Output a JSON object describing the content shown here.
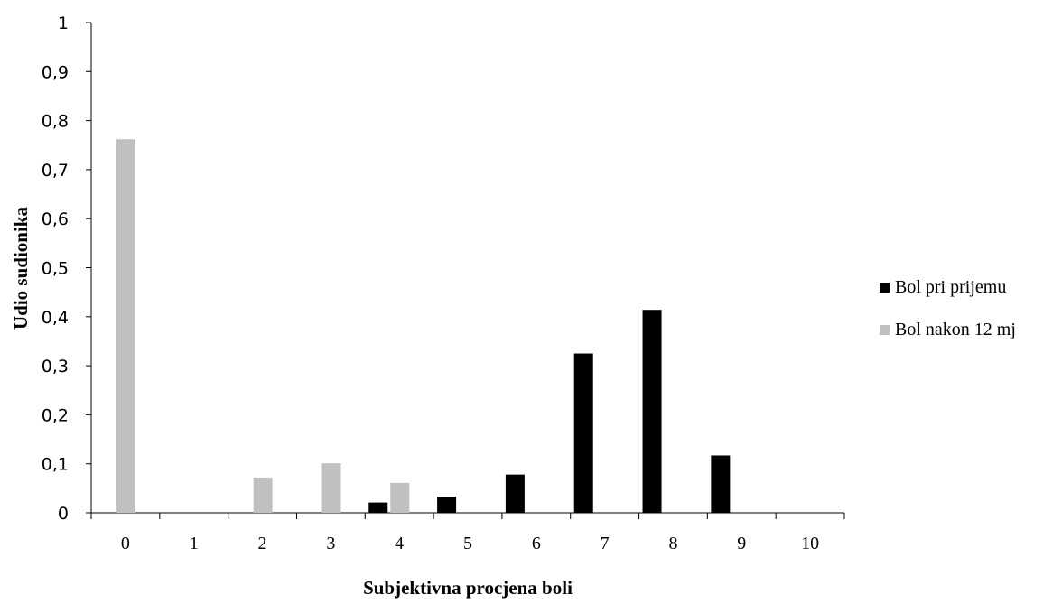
{
  "chart_data": {
    "type": "bar",
    "title": "",
    "xlabel": "Subjektivna procjena boli",
    "ylabel": "Udio sudionika",
    "categories": [
      "0",
      "1",
      "2",
      "3",
      "4",
      "5",
      "6",
      "7",
      "8",
      "9",
      "10"
    ],
    "y_ticks": [
      "0",
      "0,1",
      "0,2",
      "0,3",
      "0,4",
      "0,5",
      "0,6",
      "0,7",
      "0,8",
      "0,9",
      "1"
    ],
    "ylim": [
      0,
      1
    ],
    "grid": false,
    "legend_position": "right",
    "series": [
      {
        "name": "Bol pri prijemu",
        "color": "#000000",
        "values": [
          0,
          0,
          0,
          0,
          0.021,
          0.033,
          0.078,
          0.325,
          0.414,
          0.117,
          0
        ]
      },
      {
        "name": "Bol nakon 12 mj",
        "color": "#c0c0c0",
        "values": [
          0.762,
          0,
          0.072,
          0.101,
          0.061,
          0,
          0,
          0,
          0,
          0,
          0
        ]
      }
    ]
  }
}
